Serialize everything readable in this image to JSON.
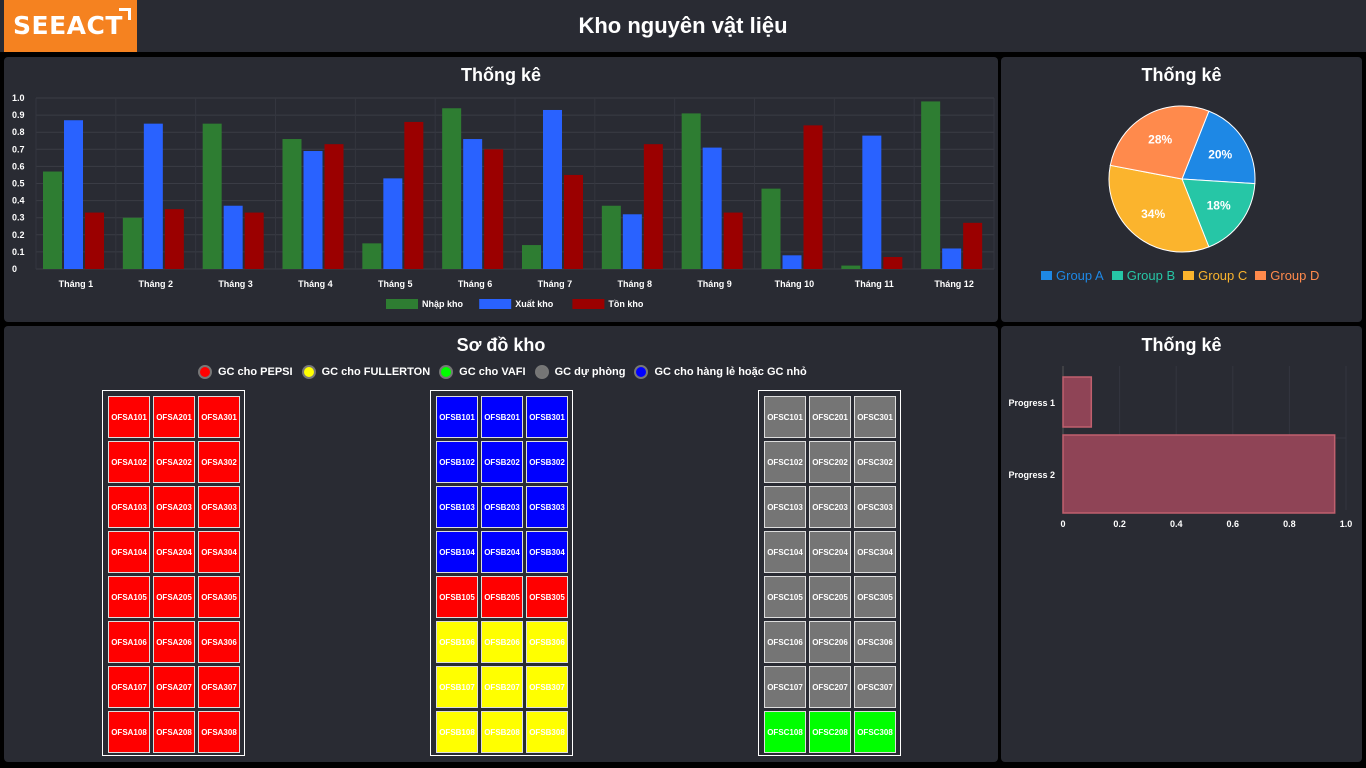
{
  "header": {
    "logo": "SEEACT",
    "title": "Kho nguyên vật liệu"
  },
  "bar_panel": {
    "title": "Thống kê"
  },
  "pie_panel": {
    "title": "Thống kê"
  },
  "map_panel": {
    "title": "Sơ đồ kho"
  },
  "progress_panel": {
    "title": "Thống kê"
  },
  "colors": {
    "green": "#2e7d32",
    "blue": "#2962ff",
    "red": "#9b0000",
    "pepsi": "#ff0000",
    "fullerton": "#ffff00",
    "vafi": "#00ff00",
    "reserve": "#757575",
    "small": "#0000ff"
  },
  "chart_data": [
    {
      "type": "bar",
      "title": "Thống kê",
      "categories": [
        "Tháng 1",
        "Tháng 2",
        "Tháng 3",
        "Tháng 4",
        "Tháng 5",
        "Tháng 6",
        "Tháng 7",
        "Tháng 8",
        "Tháng 9",
        "Tháng 10",
        "Tháng 11",
        "Tháng 12"
      ],
      "series": [
        {
          "name": "Nhập kho",
          "color": "#2e7d32",
          "values": [
            0.57,
            0.3,
            0.85,
            0.76,
            0.15,
            0.94,
            0.14,
            0.37,
            0.91,
            0.47,
            0.02,
            0.98
          ]
        },
        {
          "name": "Xuất kho",
          "color": "#2962ff",
          "values": [
            0.87,
            0.85,
            0.37,
            0.69,
            0.53,
            0.76,
            0.93,
            0.32,
            0.71,
            0.08,
            0.78,
            0.12
          ]
        },
        {
          "name": "Tồn kho",
          "color": "#9b0000",
          "values": [
            0.33,
            0.35,
            0.33,
            0.73,
            0.86,
            0.7,
            0.55,
            0.73,
            0.33,
            0.84,
            0.07,
            0.27
          ]
        }
      ],
      "yticks": [
        "1.0",
        "0.9",
        "0.8",
        "0.7",
        "0.6",
        "0.5",
        "0.4",
        "0.3",
        "0.2",
        "0.1",
        "0"
      ],
      "ylim": [
        0,
        1.0
      ],
      "legend": "bottom"
    },
    {
      "type": "pie",
      "title": "Thống kê",
      "labels": [
        "Group A",
        "Group B",
        "Group C",
        "Group D"
      ],
      "values": [
        20,
        18,
        34,
        28
      ],
      "value_labels": [
        "20%",
        "18%",
        "34%",
        "28%"
      ],
      "colors": [
        "#1e88e5",
        "#26c6a6",
        "#fbb42d",
        "#ff8a4c"
      ],
      "legend": "bottom"
    },
    {
      "type": "bar",
      "orientation": "horizontal",
      "title": "Thống kê",
      "categories": [
        "Progress 1",
        "Progress 2"
      ],
      "values": [
        0.1,
        0.96
      ],
      "xticks": [
        "0",
        "0.2",
        "0.4",
        "0.6",
        "0.8",
        "1.0"
      ],
      "xlim": [
        0,
        1.0
      ],
      "color": "#8f4456"
    }
  ],
  "map": {
    "legend": [
      {
        "label": "GC cho PEPSI",
        "color": "#ff0000"
      },
      {
        "label": "GC cho FULLERTON",
        "color": "#ffff00"
      },
      {
        "label": "GC cho VAFI",
        "color": "#00ff00"
      },
      {
        "label": "GC dự phòng",
        "color": "#757575"
      },
      {
        "label": "GC cho hàng lẻ hoặc GC nhỏ",
        "color": "#0000ff"
      }
    ],
    "blocks": [
      {
        "name": "block-a",
        "cells": [
          [
            "OFSA101",
            "OFSA201",
            "OFSA301"
          ],
          [
            "OFSA102",
            "OFSA202",
            "OFSA302"
          ],
          [
            "OFSA103",
            "OFSA203",
            "OFSA303"
          ],
          [
            "OFSA104",
            "OFSA204",
            "OFSA304"
          ],
          [
            "OFSA105",
            "OFSA205",
            "OFSA305"
          ],
          [
            "OFSA106",
            "OFSA206",
            "OFSA306"
          ],
          [
            "OFSA107",
            "OFSA207",
            "OFSA307"
          ],
          [
            "OFSA108",
            "OFSA208",
            "OFSA308"
          ]
        ],
        "row_colors": [
          "#ff0000",
          "#ff0000",
          "#ff0000",
          "#ff0000",
          "#ff0000",
          "#ff0000",
          "#ff0000",
          "#ff0000"
        ]
      },
      {
        "name": "block-b",
        "cells": [
          [
            "OFSB101",
            "OFSB201",
            "OFSB301"
          ],
          [
            "OFSB102",
            "OFSB202",
            "OFSB302"
          ],
          [
            "OFSB103",
            "OFSB203",
            "OFSB303"
          ],
          [
            "OFSB104",
            "OFSB204",
            "OFSB304"
          ],
          [
            "OFSB105",
            "OFSB205",
            "OFSB305"
          ],
          [
            "OFSB106",
            "OFSB206",
            "OFSB306"
          ],
          [
            "OFSB107",
            "OFSB207",
            "OFSB307"
          ],
          [
            "OFSB108",
            "OFSB208",
            "OFSB308"
          ]
        ],
        "row_colors": [
          "#0000ff",
          "#0000ff",
          "#0000ff",
          "#0000ff",
          "#ff0000",
          "#ffff00",
          "#ffff00",
          "#ffff00"
        ]
      },
      {
        "name": "block-c",
        "cells": [
          [
            "OFSC101",
            "OFSC201",
            "OFSC301"
          ],
          [
            "OFSC102",
            "OFSC202",
            "OFSC302"
          ],
          [
            "OFSC103",
            "OFSC203",
            "OFSC303"
          ],
          [
            "OFSC104",
            "OFSC204",
            "OFSC304"
          ],
          [
            "OFSC105",
            "OFSC205",
            "OFSC305"
          ],
          [
            "OFSC106",
            "OFSC206",
            "OFSC306"
          ],
          [
            "OFSC107",
            "OFSC207",
            "OFSC307"
          ],
          [
            "OFSC108",
            "OFSC208",
            "OFSC308"
          ]
        ],
        "row_colors": [
          "#757575",
          "#757575",
          "#757575",
          "#757575",
          "#757575",
          "#757575",
          "#757575",
          "#00ff00"
        ]
      }
    ]
  }
}
